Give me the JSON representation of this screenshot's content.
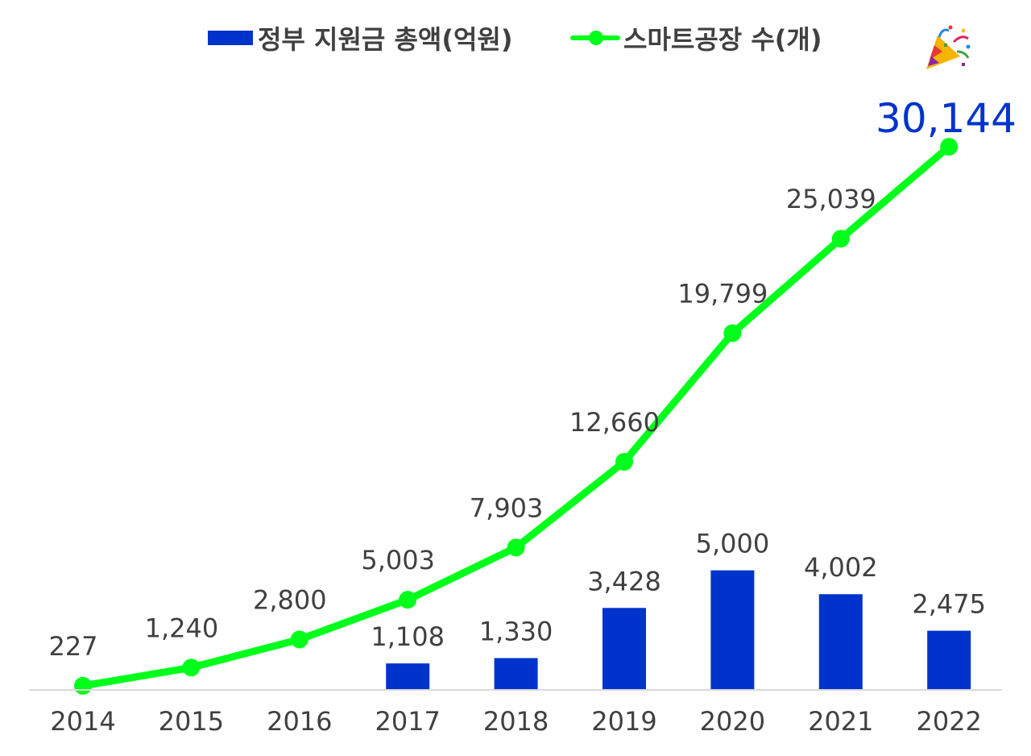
{
  "colors": {
    "bar": "#0033cc",
    "line": "#00ff1a",
    "label": "#404040",
    "highlight": "#0033cc",
    "axis": "#d9d9d9"
  },
  "legend": {
    "bar_label": "정부 지원금 총액(억원)",
    "line_label": "스마트공장 수(개)",
    "decoration_icon": "party-popper-icon"
  },
  "chart_data": {
    "type": "bar",
    "categories": [
      "2014",
      "2015",
      "2016",
      "2017",
      "2018",
      "2019",
      "2020",
      "2021",
      "2022"
    ],
    "series": [
      {
        "name": "정부 지원금 총액(억원)",
        "type": "bar",
        "values": [
          null,
          null,
          null,
          1108,
          1330,
          3428,
          5000,
          4002,
          2475
        ],
        "labels": [
          "",
          "",
          "",
          "1,108",
          "1,330",
          "3,428",
          "5,000",
          "4,002",
          "2,475"
        ]
      },
      {
        "name": "스마트공장 수(개)",
        "type": "line",
        "values": [
          227,
          1240,
          2800,
          5003,
          7903,
          12660,
          19799,
          25039,
          30144
        ],
        "labels": [
          "227",
          "1,240",
          "2,800",
          "5,003",
          "7,903",
          "12,660",
          "19,799",
          "25,039",
          "30,144"
        ]
      }
    ],
    "bar_ylim": [
      0,
      27500
    ],
    "line_ylim": [
      0,
      36500
    ],
    "highlight_label_index": 8,
    "grid": false
  }
}
